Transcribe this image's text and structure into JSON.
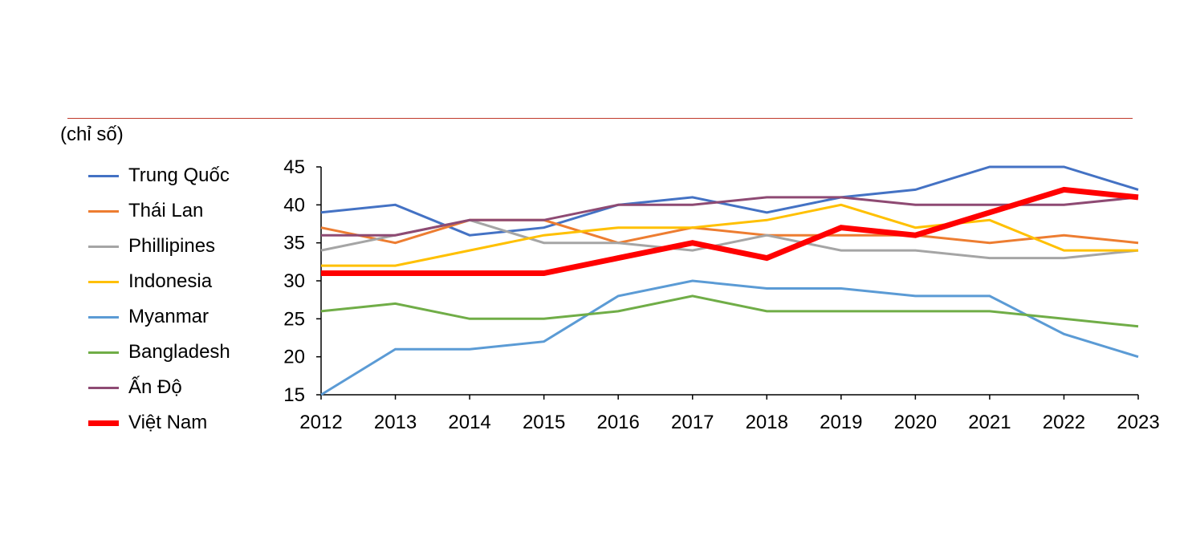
{
  "unit_label": "(chỉ số)",
  "chart_data": {
    "type": "line",
    "title": "",
    "xlabel": "",
    "ylabel": "(chỉ số)",
    "ylim": [
      15,
      45
    ],
    "yticks": [
      15,
      20,
      25,
      30,
      35,
      40,
      45
    ],
    "grid": false,
    "legend_position": "left",
    "categories": [
      "2012",
      "2013",
      "2014",
      "2015",
      "2016",
      "2017",
      "2018",
      "2019",
      "2020",
      "2021",
      "2022",
      "2023"
    ],
    "series": [
      {
        "name": "Trung Quốc",
        "color": "#4472c4",
        "width": 3,
        "values": [
          39,
          40,
          36,
          37,
          40,
          41,
          39,
          41,
          42,
          45,
          45,
          42
        ]
      },
      {
        "name": "Thái Lan",
        "color": "#ed7d31",
        "width": 3,
        "values": [
          37,
          35,
          38,
          38,
          35,
          37,
          36,
          36,
          36,
          35,
          36,
          35
        ]
      },
      {
        "name": "Phillipines",
        "color": "#a5a5a5",
        "width": 3,
        "values": [
          34,
          36,
          38,
          35,
          35,
          34,
          36,
          34,
          34,
          33,
          33,
          34
        ]
      },
      {
        "name": "Indonesia",
        "color": "#ffc000",
        "width": 3,
        "values": [
          32,
          32,
          34,
          36,
          37,
          37,
          38,
          40,
          37,
          38,
          34,
          34
        ]
      },
      {
        "name": "Myanmar",
        "color": "#5b9bd5",
        "width": 3,
        "values": [
          15,
          21,
          21,
          22,
          28,
          30,
          29,
          29,
          28,
          28,
          23,
          20
        ]
      },
      {
        "name": "Bangladesh",
        "color": "#70ad47",
        "width": 3,
        "values": [
          26,
          27,
          25,
          25,
          26,
          28,
          26,
          26,
          26,
          26,
          25,
          24
        ]
      },
      {
        "name": "Ấn Độ",
        "color": "#8e4a73",
        "width": 3,
        "values": [
          36,
          36,
          38,
          38,
          40,
          40,
          41,
          41,
          40,
          40,
          40,
          41
        ]
      },
      {
        "name": "Việt Nam",
        "color": "#ff0000",
        "width": 7,
        "values": [
          31,
          31,
          31,
          31,
          33,
          35,
          33,
          37,
          36,
          39,
          42,
          41
        ]
      }
    ]
  }
}
